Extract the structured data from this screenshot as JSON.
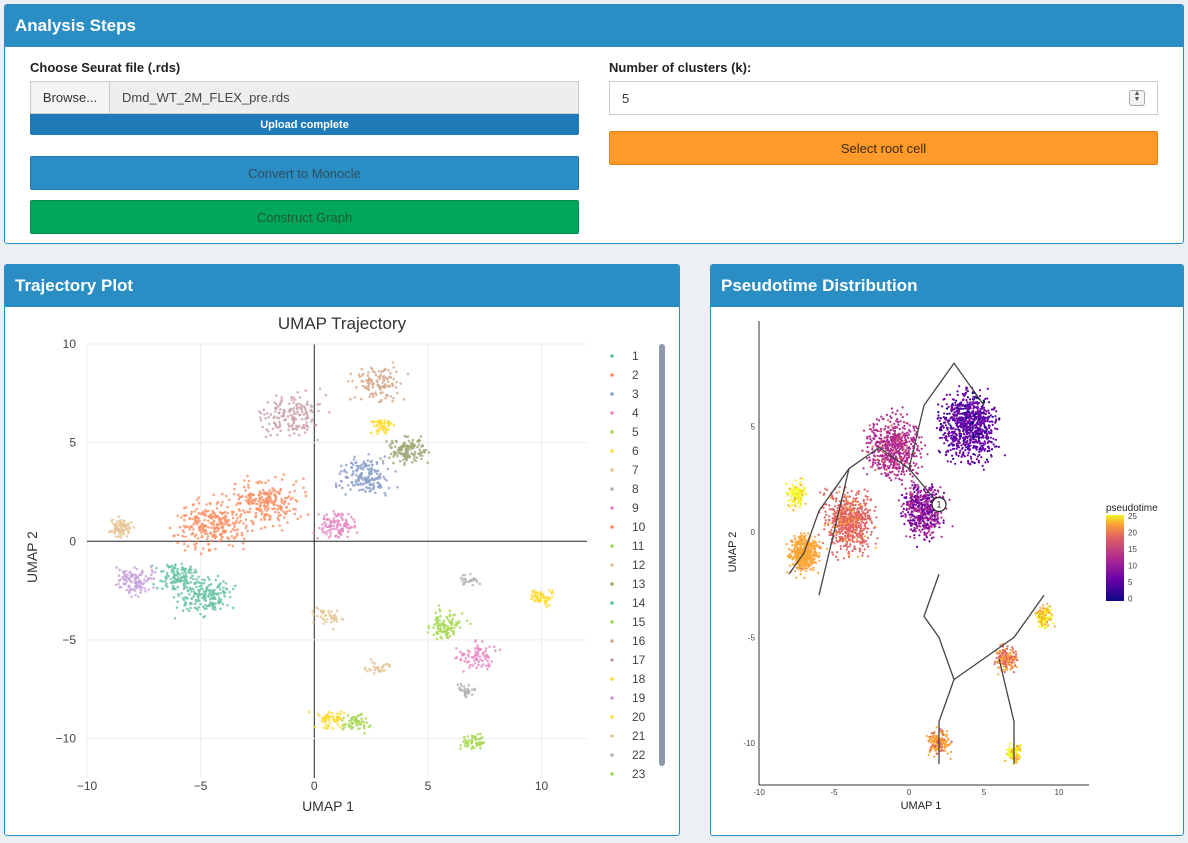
{
  "analysis": {
    "title": "Analysis Steps",
    "file_label": "Choose Seurat file (.rds)",
    "browse_label": "Browse...",
    "file_name": "Dmd_WT_2M_FLEX_pre.rds",
    "upload_status": "Upload complete",
    "upload_progress_percent": 100,
    "convert_label": "Convert to Monocle",
    "construct_label": "Construct Graph",
    "clusters_label": "Number of clusters (k):",
    "clusters_value": "5",
    "root_label": "Select root cell"
  },
  "trajectory": {
    "title": "Trajectory Plot",
    "chart_title": "UMAP Trajectory",
    "xlabel": "UMAP 1",
    "ylabel": "UMAP 2",
    "x_ticks": [
      "−10",
      "−5",
      "0",
      "5",
      "10"
    ],
    "y_ticks": [
      "10",
      "5",
      "0",
      "−5",
      "−10"
    ],
    "legend": [
      "1",
      "2",
      "3",
      "4",
      "5",
      "6",
      "7",
      "8",
      "9",
      "10",
      "11",
      "12",
      "13",
      "14",
      "15",
      "16",
      "17",
      "18",
      "19",
      "20",
      "21",
      "22",
      "23"
    ]
  },
  "pseudotime": {
    "title": "Pseudotime Distribution",
    "xlabel": "UMAP 1",
    "ylabel": "UMAP 2",
    "x_ticks": [
      "-10",
      "-5",
      "0",
      "5",
      "10"
    ],
    "y_ticks": [
      "5",
      "0",
      "-5",
      "-10"
    ],
    "legend_title": "pseudotime",
    "legend_ticks": [
      "25",
      "20",
      "15",
      "10",
      "5",
      "0"
    ],
    "root_marker": "1"
  },
  "chart_data": [
    {
      "type": "scatter",
      "title": "UMAP Trajectory",
      "xlabel": "UMAP 1",
      "ylabel": "UMAP 2",
      "xlim": [
        -10,
        12
      ],
      "ylim": [
        -12,
        10
      ],
      "grid": true,
      "legend_placement": "right",
      "series": [
        {
          "name": "1",
          "color": "#66c2a5",
          "center": [
            -4.8,
            -2.8
          ]
        },
        {
          "name": "2",
          "color": "#fc8d62",
          "center": [
            -4.5,
            0.8
          ]
        },
        {
          "name": "3",
          "color": "#8da0cb",
          "center": [
            2.2,
            3.3
          ]
        },
        {
          "name": "4",
          "color": "#e78ac3",
          "center": [
            7.2,
            -5.8
          ]
        },
        {
          "name": "5",
          "color": "#a6d854",
          "center": [
            5.7,
            -4.2
          ]
        },
        {
          "name": "6",
          "color": "#ffd92f",
          "center": [
            10.0,
            -2.8
          ]
        },
        {
          "name": "7",
          "color": "#e5c494",
          "center": [
            0.6,
            -3.8
          ]
        },
        {
          "name": "8",
          "color": "#b3b3b3",
          "center": [
            6.6,
            -7.6
          ]
        },
        {
          "name": "9",
          "color": "#e78ac3",
          "center": [
            1.0,
            0.8
          ]
        },
        {
          "name": "10",
          "color": "#fc8d62",
          "center": [
            -2.0,
            2.0
          ]
        },
        {
          "name": "11",
          "color": "#a6d854",
          "center": [
            7.0,
            -10.2
          ]
        },
        {
          "name": "12",
          "color": "#e5c494",
          "center": [
            -8.5,
            0.7
          ]
        },
        {
          "name": "13",
          "color": "#a0a878",
          "center": [
            4.1,
            4.6
          ]
        },
        {
          "name": "14",
          "color": "#66c2a5",
          "center": [
            -6.0,
            -1.8
          ]
        },
        {
          "name": "15",
          "color": "#a6d854",
          "center": [
            1.8,
            -9.2
          ]
        },
        {
          "name": "16",
          "color": "#d4a888",
          "center": [
            2.8,
            8.0
          ]
        },
        {
          "name": "17",
          "color": "#c9a0a8",
          "center": [
            -1.0,
            6.5
          ]
        },
        {
          "name": "18",
          "color": "#ffd92f",
          "center": [
            3.0,
            5.8
          ]
        },
        {
          "name": "19",
          "color": "#c8a0d8",
          "center": [
            -7.8,
            -2.0
          ]
        },
        {
          "name": "20",
          "color": "#ffd92f",
          "center": [
            0.6,
            -9.0
          ]
        },
        {
          "name": "21",
          "color": "#e5c494",
          "center": [
            2.8,
            -6.4
          ]
        },
        {
          "name": "22",
          "color": "#b3b3b3",
          "center": [
            6.8,
            -2.0
          ]
        },
        {
          "name": "23",
          "color": "#a6d854",
          "center": [
            5.8,
            -4.6
          ]
        }
      ]
    },
    {
      "type": "scatter",
      "xlabel": "UMAP 1",
      "ylabel": "UMAP 2",
      "xlim": [
        -10,
        12
      ],
      "ylim": [
        -12,
        10
      ],
      "color_scale": "pseudotime",
      "color_range": [
        0,
        25
      ],
      "root_cell": [
        2,
        1.3
      ]
    }
  ]
}
